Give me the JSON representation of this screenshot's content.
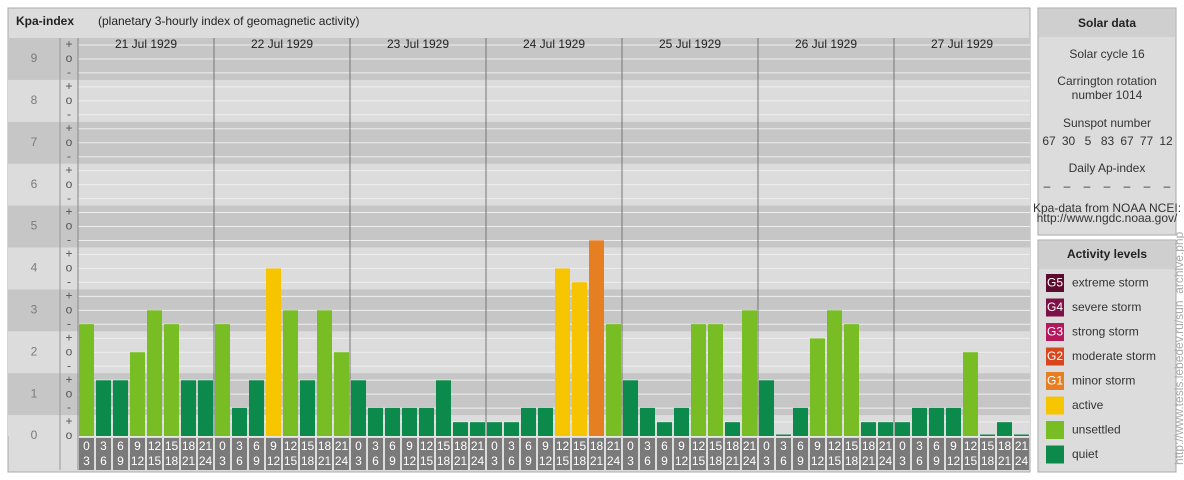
{
  "chart_data": {
    "type": "bar",
    "title": "Kpa-index",
    "subtitle": "(planetary 3-hourly index of geomagnetic activity)",
    "ylim": [
      0,
      9.5
    ],
    "yticks": [
      0,
      1,
      2,
      3,
      4,
      5,
      6,
      7,
      8,
      9
    ],
    "minor_tick_labels": [
      "-",
      "o",
      "+"
    ],
    "hours_start": [
      "0",
      "3",
      "6",
      "9",
      "12",
      "15",
      "18",
      "21"
    ],
    "hours_end": [
      "3",
      "6",
      "9",
      "12",
      "15",
      "18",
      "21",
      "24"
    ],
    "days": [
      {
        "label": "21 Jul 1929",
        "values": [
          2.67,
          1.33,
          1.33,
          2,
          3,
          2.67,
          1.33,
          1.33
        ],
        "levels": [
          6,
          7,
          7,
          6,
          6,
          6,
          7,
          7
        ]
      },
      {
        "label": "22 Jul 1929",
        "values": [
          2.67,
          0.67,
          1.33,
          4,
          3,
          1.33,
          3,
          2
        ],
        "levels": [
          6,
          7,
          7,
          5,
          6,
          7,
          6,
          6
        ]
      },
      {
        "label": "23 Jul 1929",
        "values": [
          1.33,
          0.67,
          0.67,
          0.67,
          0.67,
          1.33,
          0.33,
          0.33
        ],
        "levels": [
          7,
          7,
          7,
          7,
          7,
          7,
          7,
          7
        ]
      },
      {
        "label": "24 Jul 1929",
        "values": [
          0.33,
          0.33,
          0.67,
          0.67,
          4,
          3.67,
          4.67,
          2.67
        ],
        "levels": [
          7,
          7,
          7,
          7,
          5,
          5,
          4,
          6
        ]
      },
      {
        "label": "25 Jul 1929",
        "values": [
          1.33,
          0.67,
          0.33,
          0.67,
          2.67,
          2.67,
          0.33,
          3
        ],
        "levels": [
          7,
          7,
          7,
          7,
          6,
          6,
          7,
          6
        ]
      },
      {
        "label": "26 Jul 1929",
        "values": [
          1.33,
          0,
          0.67,
          2.33,
          3,
          2.67,
          0.33,
          0.33
        ],
        "levels": [
          7,
          7,
          7,
          6,
          6,
          6,
          7,
          7
        ]
      },
      {
        "label": "27 Jul 1929",
        "values": [
          0.33,
          0.67,
          0.67,
          0.67,
          2,
          0,
          0.33,
          0
        ],
        "levels": [
          7,
          7,
          7,
          7,
          6,
          7,
          7,
          7
        ]
      }
    ]
  },
  "solar_data": {
    "title": "Solar data",
    "cycle": "Solar cycle 16",
    "carrington": [
      "Carrington rotation",
      "number 1014"
    ],
    "sunspot_title": "Sunspot number",
    "sunspots": [
      "67",
      "30",
      "5",
      "83",
      "67",
      "77",
      "12"
    ],
    "ap_title": "Daily Ap-index",
    "ap": [
      "–",
      "–",
      "–",
      "–",
      "–",
      "–",
      "–"
    ],
    "source": [
      "Kpa-data from NOAA NCEI:",
      "http://www.ngdc.noaa.gov/"
    ]
  },
  "activity_levels": {
    "title": "Activity levels",
    "items": [
      {
        "code": "G5",
        "label": "extreme storm",
        "color": "#5c0a2e"
      },
      {
        "code": "G4",
        "label": "severe storm",
        "color": "#7d1046"
      },
      {
        "code": "G3",
        "label": "strong storm",
        "color": "#b3195c"
      },
      {
        "code": "G2",
        "label": "moderate storm",
        "color": "#d8461e"
      },
      {
        "code": "G1",
        "label": "minor storm",
        "color": "#e67e22"
      },
      {
        "label": "active",
        "color": "#f7c400"
      },
      {
        "label": "unsettled",
        "color": "#79bd24"
      },
      {
        "label": "quiet",
        "color": "#0c8a4b"
      }
    ]
  },
  "watermark": "http://www.tesis.lebedev.ru/sun_archive.php"
}
